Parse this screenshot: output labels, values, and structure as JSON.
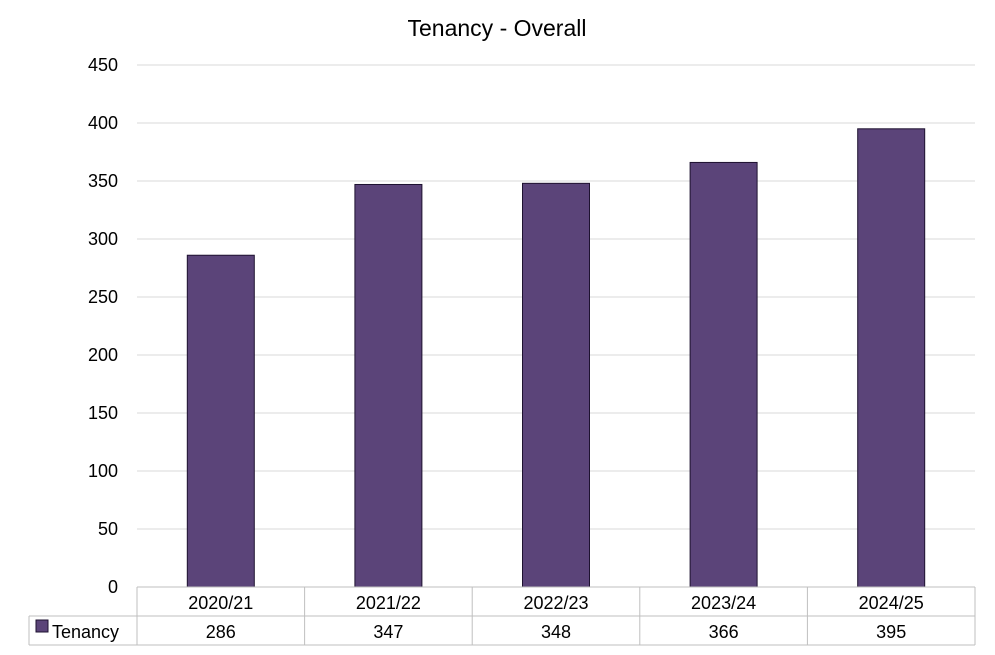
{
  "chart_data": {
    "type": "bar",
    "title": "Tenancy - Overall",
    "categories": [
      "2020/21",
      "2021/22",
      "2022/23",
      "2023/24",
      "2024/25"
    ],
    "series": [
      {
        "name": "Tenancy",
        "values": [
          286,
          347,
          348,
          366,
          395
        ]
      }
    ],
    "ylim": [
      0,
      450
    ],
    "yticks": [
      0,
      50,
      100,
      150,
      200,
      250,
      300,
      350,
      400,
      450
    ],
    "xlabel": "",
    "ylabel": "",
    "grid": true,
    "legend": "data-table-left",
    "data_table": true
  },
  "colors": {
    "bar": "#5b4479",
    "bar_stroke": "#1e1230",
    "grid": "#d9d9d9",
    "table_border": "#bfbfbf"
  }
}
